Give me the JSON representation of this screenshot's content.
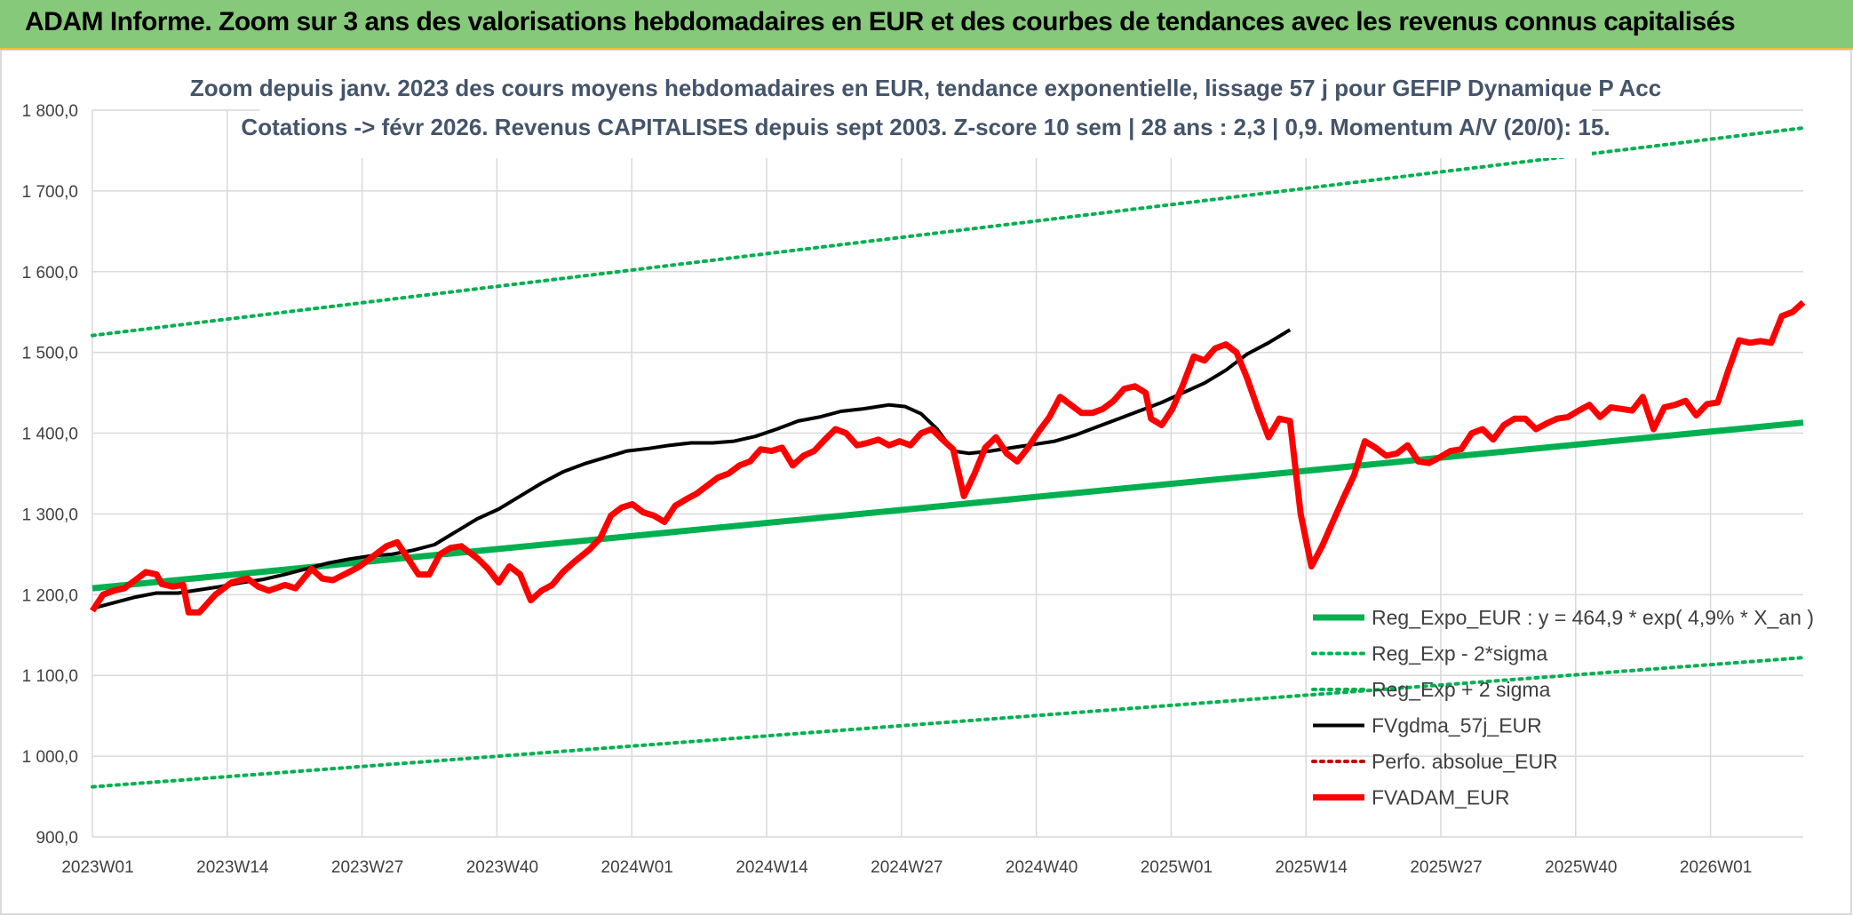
{
  "header": {
    "title": "ADAM Informe. Zoom sur 3 ans des valorisations hebdomadaires en EUR et des courbes de tendances avec les revenus connus capitalisés"
  },
  "chart_data": {
    "type": "line",
    "subtitle_lines": [
      "Zoom depuis janv. 2023 des cours moyens hebdomadaires en EUR, tendance exponentielle, lissage 57 j pour GEFIP Dynamique P Acc",
      "Cotations -> févr 2026. Revenus CAPITALISES depuis sept 2003. Z-score 10 sem | 28 ans : 2,3 | 0,9. Momentum A/V (20/0): 15."
    ],
    "x_tick_labels": [
      "2023W01",
      "2023W14",
      "2023W27",
      "2023W40",
      "2024W01",
      "2024W14",
      "2024W27",
      "2024W40",
      "2025W01",
      "2025W14",
      "2025W27",
      "2025W40",
      "2026W01"
    ],
    "y_tick_labels": [
      "900,0",
      "1 000,0",
      "1 100,0",
      "1 200,0",
      "1 300,0",
      "1 400,0",
      "1 500,0",
      "1 600,0",
      "1 700,0",
      "1 800,0"
    ],
    "ylim": [
      900,
      1800
    ],
    "n_weeks": 164,
    "grid": true,
    "legend_position": "bottom-right",
    "series": [
      {
        "name": "Reg_Expo_EUR : y = 464,9 * exp( 4,9% *  X_an )",
        "color": "#00b050",
        "style": "solid-thick",
        "points": [
          [
            0,
            1208
          ],
          [
            163,
            1413
          ]
        ]
      },
      {
        "name": "Reg_Exp - 2*sigma",
        "color": "#00b050",
        "style": "dotted",
        "points": [
          [
            0,
            962
          ],
          [
            163,
            1122
          ]
        ]
      },
      {
        "name": "Reg_Exp + 2 sigma",
        "color": "#00b050",
        "style": "dotted",
        "points": [
          [
            0,
            1521
          ],
          [
            163,
            1778
          ]
        ]
      },
      {
        "name": "FVgdma_57j_EUR",
        "color": "#000000",
        "style": "solid",
        "points": [
          [
            0,
            1183
          ],
          [
            4,
            1190
          ],
          [
            8,
            1197
          ],
          [
            12,
            1202
          ],
          [
            16,
            1202
          ],
          [
            20,
            1206
          ],
          [
            24,
            1210
          ],
          [
            28,
            1215
          ],
          [
            32,
            1219
          ],
          [
            36,
            1225
          ],
          [
            40,
            1232
          ],
          [
            44,
            1239
          ],
          [
            48,
            1244
          ],
          [
            52,
            1248
          ],
          [
            56,
            1250
          ],
          [
            60,
            1255
          ],
          [
            64,
            1262
          ],
          [
            68,
            1278
          ],
          [
            72,
            1294
          ],
          [
            76,
            1306
          ],
          [
            80,
            1322
          ],
          [
            84,
            1338
          ],
          [
            88,
            1352
          ],
          [
            92,
            1362
          ],
          [
            96,
            1370
          ],
          [
            100,
            1378
          ],
          [
            104,
            1381
          ],
          [
            108,
            1385
          ],
          [
            112,
            1388
          ],
          [
            116,
            1388
          ],
          [
            120,
            1390
          ],
          [
            124,
            1396
          ],
          [
            128,
            1405
          ],
          [
            132,
            1415
          ],
          [
            136,
            1420
          ],
          [
            140,
            1427
          ],
          [
            144,
            1430
          ],
          [
            146,
            1432
          ],
          [
            149,
            1435
          ],
          [
            152,
            1433
          ],
          [
            155,
            1424
          ],
          [
            158,
            1405
          ],
          [
            161,
            1378
          ],
          [
            164,
            1375
          ],
          [
            168,
            1378
          ],
          [
            172,
            1382
          ],
          [
            176,
            1386
          ],
          [
            180,
            1390
          ],
          [
            184,
            1398
          ],
          [
            188,
            1408
          ],
          [
            192,
            1418
          ],
          [
            196,
            1428
          ],
          [
            200,
            1438
          ],
          [
            204,
            1450
          ],
          [
            208,
            1462
          ],
          [
            212,
            1478
          ],
          [
            216,
            1498
          ],
          [
            220,
            1512
          ],
          [
            224,
            1528
          ]
        ]
      },
      {
        "name": "Perfo. absolue_EUR",
        "color": "#c00000",
        "style": "dotted",
        "points": []
      },
      {
        "name": "FVADAM_EUR",
        "color": "#ff0000",
        "style": "solid-thick",
        "points": [
          [
            0,
            1180
          ],
          [
            2,
            1200
          ],
          [
            4,
            1205
          ],
          [
            6,
            1208
          ],
          [
            8,
            1218
          ],
          [
            10,
            1228
          ],
          [
            12,
            1225
          ],
          [
            13,
            1213
          ],
          [
            15,
            1210
          ],
          [
            17,
            1212
          ],
          [
            18,
            1178
          ],
          [
            20,
            1178
          ],
          [
            23,
            1200
          ],
          [
            26,
            1215
          ],
          [
            29,
            1220
          ],
          [
            31,
            1210
          ],
          [
            33,
            1205
          ],
          [
            36,
            1212
          ],
          [
            38,
            1208
          ],
          [
            41,
            1232
          ],
          [
            43,
            1220
          ],
          [
            45,
            1218
          ],
          [
            48,
            1228
          ],
          [
            50,
            1235
          ],
          [
            52,
            1245
          ],
          [
            55,
            1260
          ],
          [
            57,
            1265
          ],
          [
            59,
            1245
          ],
          [
            61,
            1225
          ],
          [
            63,
            1225
          ],
          [
            65,
            1250
          ],
          [
            67,
            1258
          ],
          [
            69,
            1260
          ],
          [
            72,
            1245
          ],
          [
            74,
            1232
          ],
          [
            76,
            1215
          ],
          [
            78,
            1235
          ],
          [
            80,
            1225
          ],
          [
            82,
            1193
          ],
          [
            84,
            1205
          ],
          [
            86,
            1212
          ],
          [
            88,
            1228
          ],
          [
            90,
            1240
          ],
          [
            93,
            1256
          ],
          [
            95,
            1270
          ],
          [
            97,
            1298
          ],
          [
            99,
            1308
          ],
          [
            101,
            1312
          ],
          [
            103,
            1302
          ],
          [
            105,
            1298
          ],
          [
            107,
            1290
          ],
          [
            109,
            1310
          ],
          [
            111,
            1318
          ],
          [
            113,
            1325
          ],
          [
            115,
            1335
          ],
          [
            117,
            1345
          ],
          [
            119,
            1350
          ],
          [
            121,
            1360
          ],
          [
            123,
            1365
          ],
          [
            125,
            1380
          ],
          [
            127,
            1378
          ],
          [
            129,
            1382
          ],
          [
            131,
            1360
          ],
          [
            133,
            1372
          ],
          [
            135,
            1378
          ],
          [
            137,
            1392
          ],
          [
            139,
            1405
          ],
          [
            141,
            1400
          ],
          [
            143,
            1385
          ],
          [
            145,
            1388
          ],
          [
            147,
            1392
          ],
          [
            149,
            1385
          ],
          [
            151,
            1390
          ],
          [
            153,
            1385
          ],
          [
            155,
            1400
          ],
          [
            157,
            1405
          ],
          [
            159,
            1392
          ],
          [
            161,
            1380
          ],
          [
            163,
            1322
          ],
          [
            165,
            1350
          ],
          [
            167,
            1382
          ],
          [
            169,
            1395
          ],
          [
            171,
            1375
          ],
          [
            173,
            1365
          ],
          [
            175,
            1382
          ],
          [
            177,
            1402
          ],
          [
            179,
            1420
          ],
          [
            181,
            1445
          ],
          [
            183,
            1435
          ],
          [
            185,
            1425
          ],
          [
            187,
            1425
          ],
          [
            189,
            1430
          ],
          [
            191,
            1440
          ],
          [
            193,
            1455
          ],
          [
            195,
            1458
          ],
          [
            197,
            1450
          ],
          [
            198,
            1418
          ],
          [
            200,
            1410
          ],
          [
            202,
            1430
          ],
          [
            204,
            1460
          ],
          [
            206,
            1495
          ],
          [
            208,
            1490
          ],
          [
            210,
            1505
          ],
          [
            212,
            1510
          ],
          [
            214,
            1500
          ],
          [
            216,
            1468
          ],
          [
            218,
            1430
          ],
          [
            220,
            1395
          ],
          [
            222,
            1418
          ],
          [
            224,
            1415
          ],
          [
            226,
            1300
          ],
          [
            228,
            1235
          ],
          [
            230,
            1260
          ],
          [
            232,
            1290
          ],
          [
            234,
            1320
          ],
          [
            236,
            1348
          ],
          [
            238,
            1390
          ],
          [
            240,
            1382
          ],
          [
            242,
            1372
          ],
          [
            244,
            1375
          ],
          [
            246,
            1385
          ],
          [
            248,
            1365
          ],
          [
            250,
            1363
          ],
          [
            252,
            1370
          ],
          [
            254,
            1378
          ],
          [
            256,
            1380
          ],
          [
            258,
            1400
          ],
          [
            260,
            1405
          ],
          [
            262,
            1392
          ],
          [
            264,
            1410
          ],
          [
            266,
            1418
          ],
          [
            268,
            1418
          ],
          [
            270,
            1405
          ],
          [
            272,
            1412
          ],
          [
            274,
            1418
          ],
          [
            276,
            1420
          ],
          [
            278,
            1428
          ],
          [
            280,
            1435
          ],
          [
            282,
            1420
          ],
          [
            284,
            1432
          ],
          [
            286,
            1430
          ],
          [
            288,
            1428
          ],
          [
            290,
            1445
          ],
          [
            292,
            1405
          ],
          [
            294,
            1432
          ],
          [
            296,
            1435
          ],
          [
            298,
            1440
          ],
          [
            300,
            1422
          ],
          [
            302,
            1436
          ],
          [
            304,
            1438
          ],
          [
            306,
            1478
          ],
          [
            308,
            1515
          ],
          [
            310,
            1512
          ],
          [
            312,
            1514
          ],
          [
            314,
            1512
          ],
          [
            316,
            1545
          ],
          [
            318,
            1550
          ],
          [
            320,
            1562
          ]
        ]
      }
    ]
  }
}
